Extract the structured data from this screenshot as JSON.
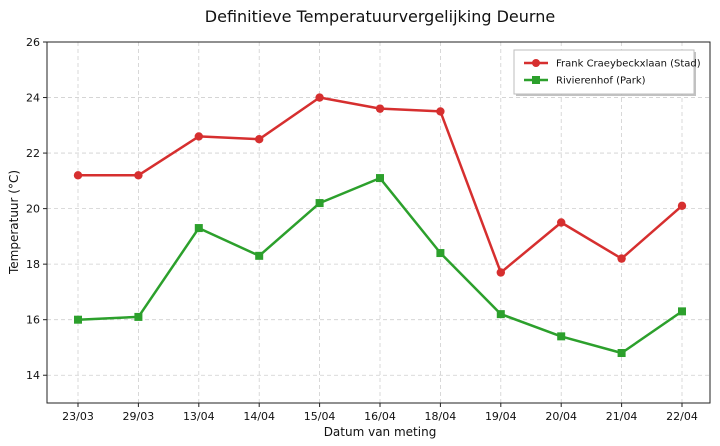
{
  "chart_data": {
    "type": "line",
    "title": "Definitieve Temperatuurvergelijking Deurne",
    "xlabel": "Datum van meting",
    "ylabel": "Temperatuur (°C)",
    "ylim": [
      13,
      26
    ],
    "yticks": [
      14,
      16,
      18,
      20,
      22,
      24,
      26
    ],
    "grid": true,
    "legend_position": "top-right",
    "categories": [
      "23/03",
      "29/03",
      "13/04",
      "14/04",
      "15/04",
      "16/04",
      "18/04",
      "19/04",
      "20/04",
      "21/04",
      "22/04"
    ],
    "series": [
      {
        "name": "Frank Craeybeckxlaan (Stad)",
        "color": "#d62f2f",
        "marker": "circle",
        "values": [
          21.2,
          21.2,
          22.6,
          22.5,
          24.0,
          23.6,
          23.5,
          17.7,
          19.5,
          18.2,
          20.1
        ]
      },
      {
        "name": "Rivierenhof (Park)",
        "color": "#2ca02c",
        "marker": "square",
        "values": [
          16.0,
          16.1,
          19.3,
          18.3,
          20.2,
          21.1,
          18.4,
          16.2,
          15.4,
          14.8,
          16.3
        ]
      }
    ]
  }
}
